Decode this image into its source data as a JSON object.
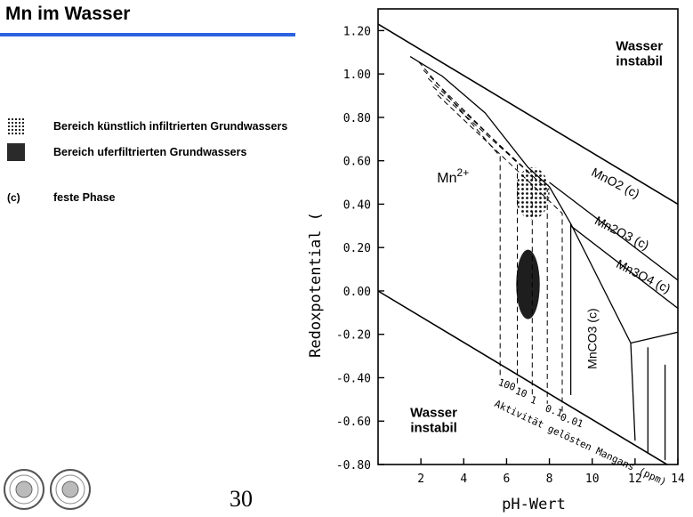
{
  "page": {
    "title": "Mn im Wasser",
    "accent_color": "#2a62e0",
    "page_number": "30"
  },
  "legend": [
    {
      "symbol": "dotted-swatch",
      "label": "Bereich künstlich infiltrierten Grundwassers"
    },
    {
      "symbol": "dark-swatch",
      "label": "Bereich uferfiltrierten Grundwassers"
    },
    {
      "symbol": "(c)",
      "label": "feste Phase"
    }
  ],
  "logos": [
    "university-seal-icon",
    "university-seal-icon"
  ],
  "chart_data": {
    "type": "pourbaix-diagram",
    "xlabel": "pH-Wert",
    "ylabel": "Redoxpotential (",
    "xlim": [
      0,
      14
    ],
    "ylim": [
      -0.8,
      1.3
    ],
    "x_ticks": [
      "2",
      "4",
      "6",
      "8",
      "10",
      "12",
      "14"
    ],
    "y_ticks": [
      "1.20",
      "1.00",
      "0.80",
      "0.60",
      "0.40",
      "0.20",
      "0.00",
      "-0.20",
      "-0.40",
      "-0.60",
      "-0.80"
    ],
    "water_upper_boundary": [
      [
        0,
        1.23
      ],
      [
        14,
        0.4
      ]
    ],
    "water_lower_boundary": [
      [
        0,
        0.0
      ],
      [
        14,
        -0.83
      ]
    ],
    "fields": [
      {
        "label": "Wasser instabil",
        "region": "above-water-stability",
        "lines": [
          "Wasser",
          "instabil"
        ]
      },
      {
        "label": "Wasser instabil",
        "region": "below-water-stability",
        "lines": [
          "Wasser",
          "instabil"
        ]
      },
      {
        "label": "Mn2+",
        "base": "Mn",
        "sup": "2+"
      },
      {
        "label": "MnO2 (c)"
      },
      {
        "label": "Mn2O3 (c)"
      },
      {
        "label": "Mn3O4 (c)"
      },
      {
        "label": "MnCO3 (c)"
      }
    ],
    "boundaries": {
      "mno2_lower": [
        [
          8.0,
          0.5
        ],
        [
          14,
          0.05
        ]
      ],
      "mn2o3_lower": [
        [
          9.0,
          0.3
        ],
        [
          14,
          -0.08
        ]
      ],
      "mn3o4_lower": [
        [
          11.8,
          -0.24
        ],
        [
          14,
          -0.19
        ]
      ],
      "mn2_mnox_curve": [
        [
          1.5,
          1.08
        ],
        [
          3.0,
          0.99
        ],
        [
          5.0,
          0.82
        ],
        [
          7.0,
          0.57
        ],
        [
          8.0,
          0.48
        ],
        [
          9.0,
          0.31
        ]
      ],
      "mnco3_left": [
        [
          9.0,
          0.31
        ],
        [
          9.0,
          -0.48
        ]
      ],
      "mnco3_right": [
        [
          9.0,
          0.31
        ],
        [
          11.8,
          -0.24
        ],
        [
          12.0,
          -0.69
        ]
      ],
      "mn3o4_right": [
        [
          12.6,
          -0.26
        ],
        [
          12.6,
          -0.75
        ]
      ],
      "far_right": [
        [
          13.4,
          -0.34
        ],
        [
          13.4,
          -0.78
        ]
      ]
    },
    "activity_lines": [
      {
        "label": "100",
        "ph": 5.7
      },
      {
        "label": "10",
        "ph": 6.5
      },
      {
        "label": "1",
        "ph": 7.2
      },
      {
        "label": "0.1",
        "ph": 7.9
      },
      {
        "label": "0.01",
        "ph": 8.6
      }
    ],
    "activity_axis_label": "Aktivität gelösten Mangans (ppm)",
    "regions": [
      {
        "name": "artificially infiltrated groundwater",
        "pattern": "dotted",
        "ph_range": [
          6.4,
          8.0
        ],
        "eh_range": [
          0.33,
          0.57
        ]
      },
      {
        "name": "bank-filtered groundwater",
        "pattern": "dark",
        "ph_center": 7.0,
        "eh_center": 0.03,
        "ph_halfwidth": 0.55,
        "eh_halfwidth": 0.16
      }
    ]
  }
}
